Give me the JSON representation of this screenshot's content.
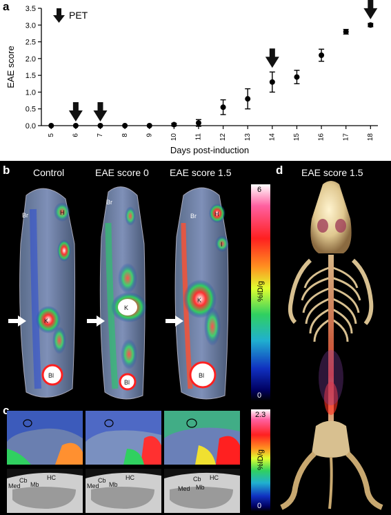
{
  "panel_labels": {
    "a": "a",
    "b": "b",
    "c": "c",
    "d": "d"
  },
  "legend_pet": "PET",
  "chart_data": {
    "type": "scatter",
    "xlabel": "Days post-induction",
    "ylabel": "EAE score",
    "x": [
      5,
      6,
      7,
      8,
      9,
      10,
      11,
      12,
      13,
      14,
      15,
      16,
      17,
      18
    ],
    "y": [
      0,
      0,
      0,
      0,
      0,
      0.03,
      0.08,
      0.55,
      0.8,
      1.3,
      1.45,
      2.1,
      2.8,
      3.0
    ],
    "err": [
      0,
      0,
      0,
      0,
      0,
      0.04,
      0.1,
      0.22,
      0.3,
      0.3,
      0.2,
      0.18,
      0.07,
      0.05
    ],
    "xticks": [
      5,
      6,
      7,
      8,
      9,
      10,
      11,
      12,
      13,
      14,
      15,
      16,
      17,
      18
    ],
    "yticks": [
      "0.0",
      "0.5",
      "1.0",
      "1.5",
      "2.0",
      "2.5",
      "3.0",
      "3.5"
    ],
    "ylim": [
      0,
      3.5
    ],
    "pet_days": [
      6,
      7,
      14,
      18
    ]
  },
  "panel_b": {
    "titles": [
      "Control",
      "EAE score 0",
      "EAE score 1.5"
    ],
    "colorbar": {
      "max": "6",
      "min": "0",
      "unit": "%ID/g"
    },
    "organs": {
      "br": "Br",
      "h": "H",
      "k": "K",
      "bl": "Bl",
      "s": "S",
      "i": "I"
    }
  },
  "panel_c": {
    "colorbar": {
      "max": "2.3",
      "min": "0",
      "unit": "%ID/g"
    },
    "regions": {
      "cb": "Cb",
      "med": "Med",
      "mb": "Mb",
      "hc": "HC"
    }
  },
  "panel_d": {
    "title": "EAE score 1.5"
  },
  "colors": {
    "pet_hot": "#ff2020",
    "pet_mid": "#30d060",
    "pet_low": "#1030c0",
    "bone": "#e8d2a0"
  }
}
